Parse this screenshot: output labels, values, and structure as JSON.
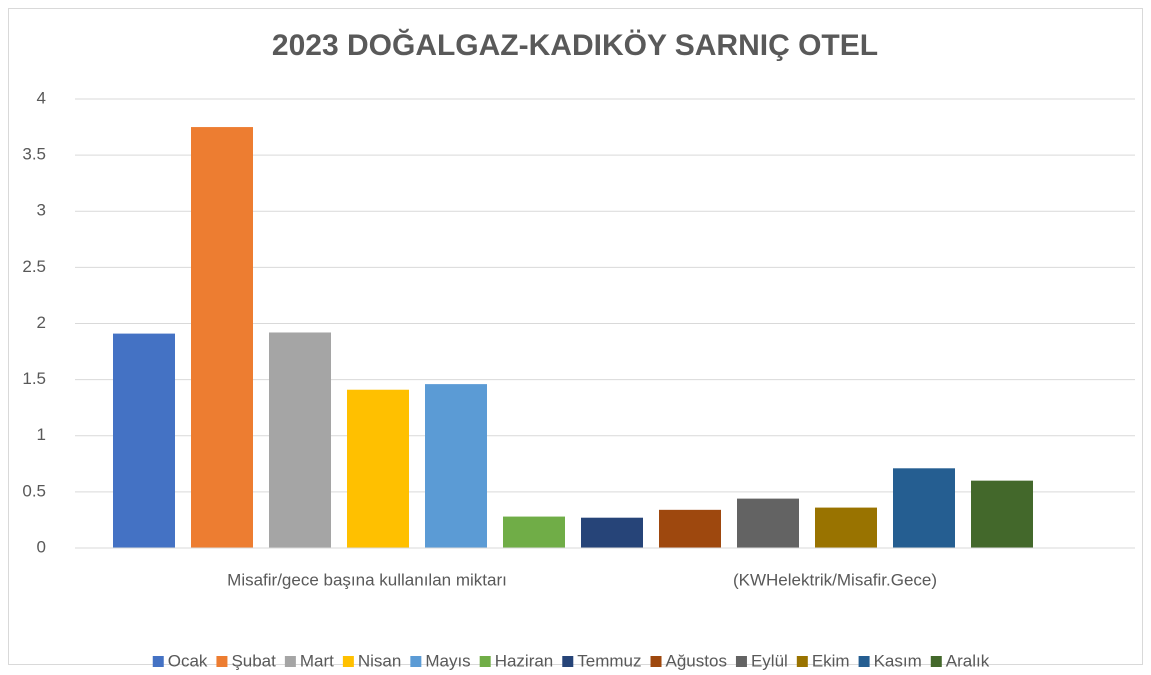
{
  "chart_data": {
    "type": "bar",
    "title": "2023 DOĞALGAZ-KADIKÖY SARNIÇ OTEL",
    "categories": [
      "Misafir/gece başına kullanılan  miktarı",
      "(KWHelektrik/Misafir.Gece)"
    ],
    "series": [
      {
        "name": "Ocak",
        "color": "#4472c4",
        "values": [
          1.91,
          null
        ]
      },
      {
        "name": "Şubat",
        "color": "#ed7d31",
        "values": [
          3.75,
          null
        ]
      },
      {
        "name": "Mart",
        "color": "#a5a5a5",
        "values": [
          1.92,
          null
        ]
      },
      {
        "name": "Nisan",
        "color": "#ffc000",
        "values": [
          1.41,
          null
        ]
      },
      {
        "name": "Mayıs",
        "color": "#5b9bd5",
        "values": [
          1.46,
          null
        ]
      },
      {
        "name": "Haziran",
        "color": "#70ad47",
        "values": [
          0.28,
          null
        ]
      },
      {
        "name": "Temmuz",
        "color": "#264478",
        "values": [
          null,
          0.27
        ]
      },
      {
        "name": "Ağustos",
        "color": "#9e480e",
        "values": [
          null,
          0.34
        ]
      },
      {
        "name": "Eylül",
        "color": "#636363",
        "values": [
          null,
          0.44
        ]
      },
      {
        "name": "Ekim",
        "color": "#997300",
        "values": [
          null,
          0.36
        ]
      },
      {
        "name": "Kasım",
        "color": "#255e91",
        "values": [
          null,
          0.71
        ]
      },
      {
        "name": "Aralık",
        "color": "#43682b",
        "values": [
          null,
          0.6
        ]
      }
    ],
    "ylim": [
      0,
      4
    ],
    "yticks": [
      0,
      0.5,
      1,
      1.5,
      2,
      2.5,
      3,
      3.5,
      4
    ],
    "grid": true,
    "legend": "bottom"
  }
}
